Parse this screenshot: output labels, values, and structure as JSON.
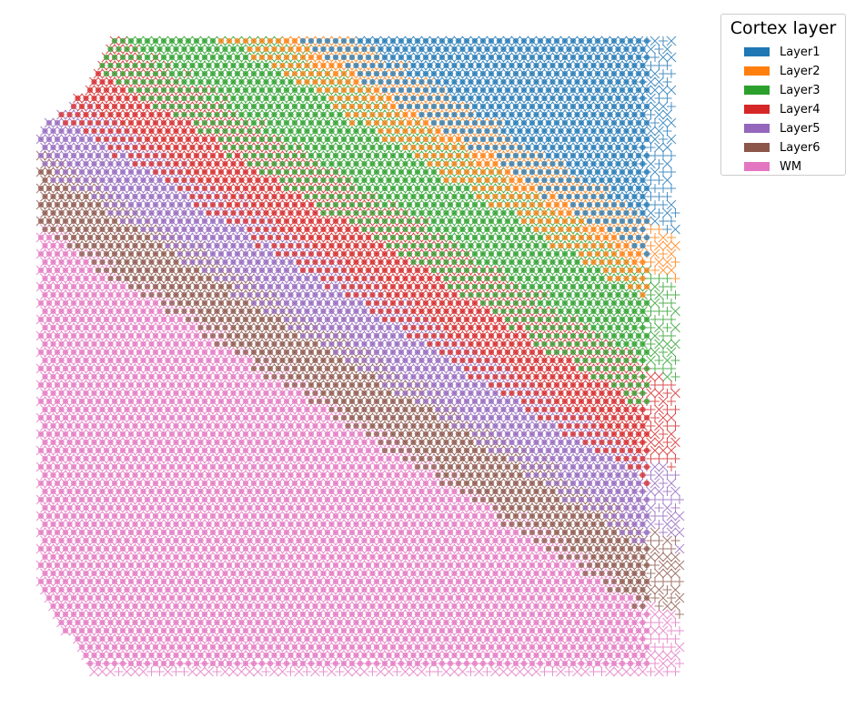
{
  "chart_data": {
    "type": "scatter",
    "description_markers": {
      "circle": "reference spots",
      "cross": "mapped spots",
      "plus": "mapped spots (right/bottom edge)"
    },
    "legend": {
      "title": "Cortex layer",
      "placement": "top-right, outside plot",
      "entries": [
        {
          "label": "Layer1",
          "color": "#1f77b4"
        },
        {
          "label": "Layer2",
          "color": "#ff7f0e"
        },
        {
          "label": "Layer3",
          "color": "#2ca02c"
        },
        {
          "label": "Layer4",
          "color": "#d62728"
        },
        {
          "label": "Layer5",
          "color": "#9467bd"
        },
        {
          "label": "Layer6",
          "color": "#8c564b"
        },
        {
          "label": "WM",
          "color": "#e377c2"
        }
      ]
    },
    "axes_visible": false,
    "grid": false,
    "layer_order_top_right_to_bottom_left": [
      "Layer1",
      "Layer2",
      "Layer3",
      "Layer4",
      "Layer5",
      "Layer6",
      "WM"
    ]
  }
}
